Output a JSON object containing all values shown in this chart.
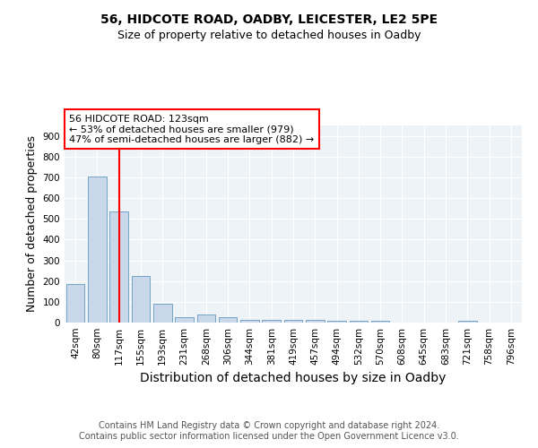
{
  "title": "56, HIDCOTE ROAD, OADBY, LEICESTER, LE2 5PE",
  "subtitle": "Size of property relative to detached houses in Oadby",
  "xlabel": "Distribution of detached houses by size in Oadby",
  "ylabel": "Number of detached properties",
  "footer1": "Contains HM Land Registry data © Crown copyright and database right 2024.",
  "footer2": "Contains public sector information licensed under the Open Government Licence v3.0.",
  "bin_labels": [
    "42sqm",
    "80sqm",
    "117sqm",
    "155sqm",
    "193sqm",
    "231sqm",
    "268sqm",
    "306sqm",
    "344sqm",
    "381sqm",
    "419sqm",
    "457sqm",
    "494sqm",
    "532sqm",
    "570sqm",
    "608sqm",
    "645sqm",
    "683sqm",
    "721sqm",
    "758sqm",
    "796sqm"
  ],
  "bar_values": [
    185,
    705,
    535,
    225,
    90,
    28,
    38,
    25,
    12,
    12,
    12,
    12,
    10,
    10,
    8,
    0,
    0,
    0,
    8,
    0,
    0
  ],
  "bar_color": "#c8d8ea",
  "bar_edge_color": "#6699bb",
  "vline_x_index": 2,
  "vline_color": "red",
  "annotation_line1": "56 HIDCOTE ROAD: 123sqm",
  "annotation_line2": "← 53% of detached houses are smaller (979)",
  "annotation_line3": "47% of semi-detached houses are larger (882) →",
  "annotation_box_color": "white",
  "annotation_box_edge": "red",
  "ylim": [
    0,
    950
  ],
  "yticks": [
    0,
    100,
    200,
    300,
    400,
    500,
    600,
    700,
    800,
    900
  ],
  "background_color": "#eef3f7",
  "grid_color": "white",
  "title_fontsize": 10,
  "subtitle_fontsize": 9,
  "ylabel_fontsize": 9,
  "xlabel_fontsize": 10,
  "tick_fontsize": 7.5,
  "footer_fontsize": 7,
  "annot_fontsize": 8
}
